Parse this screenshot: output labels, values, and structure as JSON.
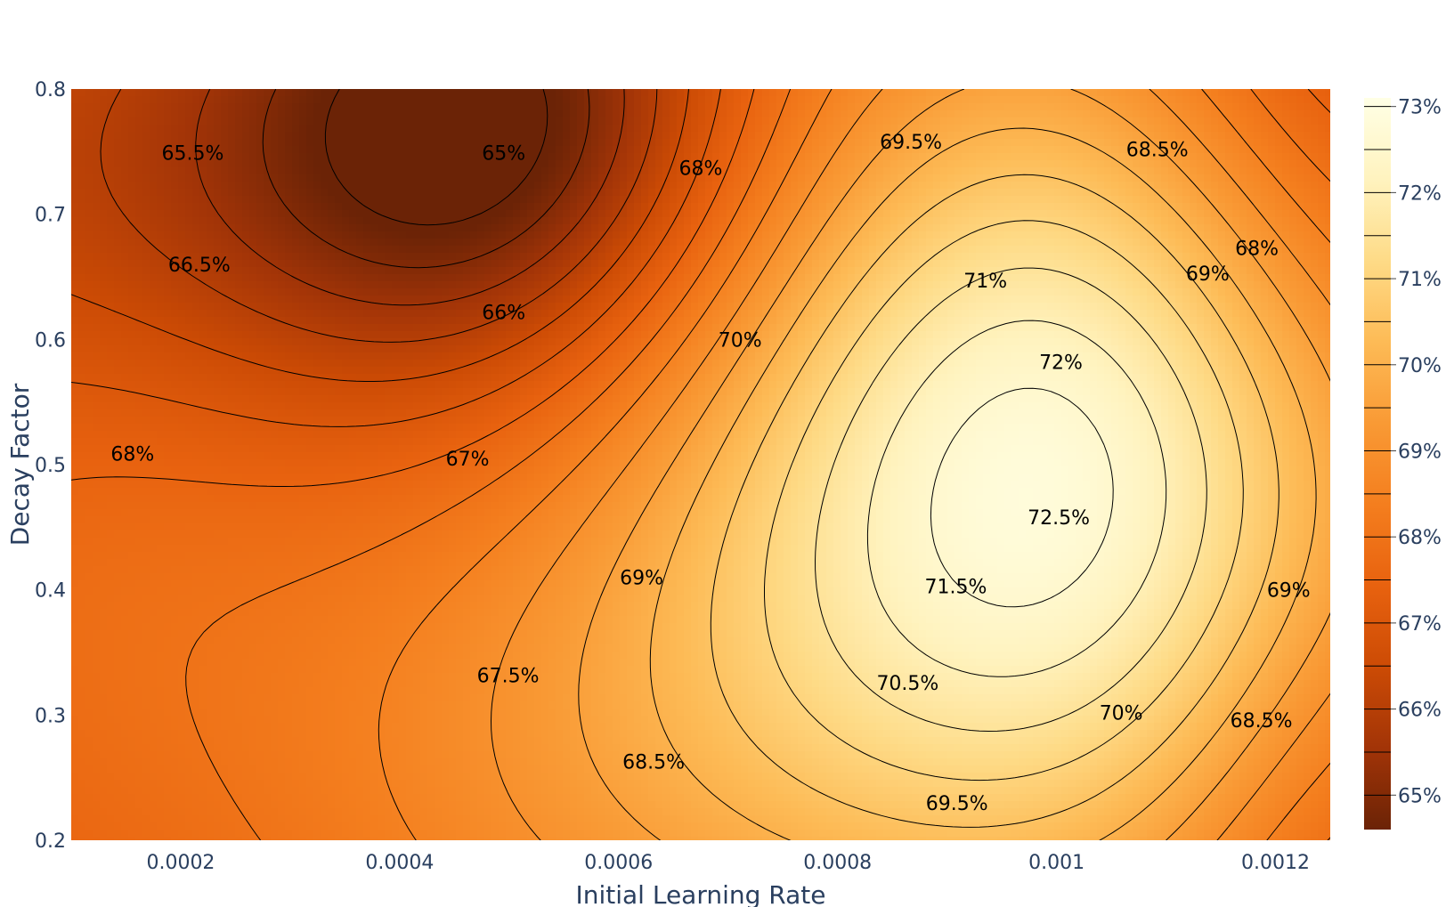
{
  "chart_data": {
    "type": "contour",
    "xlabel": "Initial Learning Rate",
    "ylabel": "Decay Factor",
    "xlim": [
      0.0001,
      0.00125
    ],
    "ylim": [
      0.2,
      0.8
    ],
    "x_ticks": [
      "0.0002",
      "0.0004",
      "0.0006",
      "0.0008",
      "0.001",
      "0.0012"
    ],
    "x_tick_values": [
      0.0002,
      0.0004,
      0.0006,
      0.0008,
      0.001,
      0.0012
    ],
    "y_ticks": [
      "0.2",
      "0.3",
      "0.4",
      "0.5",
      "0.6",
      "0.7",
      "0.8"
    ],
    "y_tick_values": [
      0.2,
      0.3,
      0.4,
      0.5,
      0.6,
      0.7,
      0.8
    ],
    "colorbar": {
      "ticks": [
        "65%",
        "66%",
        "67%",
        "68%",
        "69%",
        "70%",
        "71%",
        "72%",
        "73%"
      ],
      "tick_values": [
        65,
        66,
        67,
        68,
        69,
        70,
        71,
        72,
        73
      ],
      "range": [
        64.6,
        73.1
      ],
      "colorscale": [
        "#6b2306",
        "#a23407",
        "#cc4b05",
        "#e8620f",
        "#f47e1e",
        "#f99a35",
        "#fdbb56",
        "#fedb87",
        "#fff3bf",
        "#ffffe5"
      ]
    },
    "contour_start": 64.5,
    "contour_step": 0.5,
    "contour_labels": [
      {
        "text": "65%",
        "x": 0.000495,
        "y": 0.749
      },
      {
        "text": "65.5%",
        "x": 0.000211,
        "y": 0.749
      },
      {
        "text": "66%",
        "x": 0.000495,
        "y": 0.622
      },
      {
        "text": "66.5%",
        "x": 0.000217,
        "y": 0.66
      },
      {
        "text": "67%",
        "x": 0.000462,
        "y": 0.505
      },
      {
        "text": "67.5%",
        "x": 0.000499,
        "y": 0.332
      },
      {
        "text": "68%",
        "x": 0.000156,
        "y": 0.509
      },
      {
        "text": "68%",
        "x": 0.000675,
        "y": 0.737
      },
      {
        "text": "68%",
        "x": 0.001183,
        "y": 0.673
      },
      {
        "text": "68.5%",
        "x": 0.000632,
        "y": 0.263
      },
      {
        "text": "68.5%",
        "x": 0.001092,
        "y": 0.752
      },
      {
        "text": "68.5%",
        "x": 0.001187,
        "y": 0.296
      },
      {
        "text": "69%",
        "x": 0.000621,
        "y": 0.41
      },
      {
        "text": "69%",
        "x": 0.001138,
        "y": 0.653
      },
      {
        "text": "69%",
        "x": 0.001212,
        "y": 0.4
      },
      {
        "text": "69.5%",
        "x": 0.000867,
        "y": 0.758
      },
      {
        "text": "69.5%",
        "x": 0.000909,
        "y": 0.23
      },
      {
        "text": "70%",
        "x": 0.000711,
        "y": 0.6
      },
      {
        "text": "70%",
        "x": 0.001059,
        "y": 0.302
      },
      {
        "text": "70.5%",
        "x": 0.000864,
        "y": 0.326
      },
      {
        "text": "71%",
        "x": 0.000935,
        "y": 0.647
      },
      {
        "text": "71.5%",
        "x": 0.000908,
        "y": 0.403
      },
      {
        "text": "72%",
        "x": 0.001004,
        "y": 0.582
      },
      {
        "text": "72.5%",
        "x": 0.001002,
        "y": 0.458
      }
    ]
  }
}
